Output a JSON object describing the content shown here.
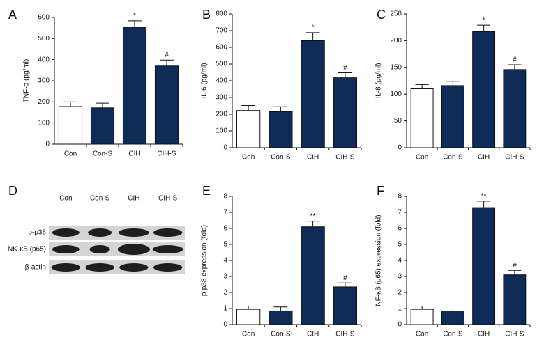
{
  "chart_data": [
    {
      "type": "bar",
      "panel": "A",
      "ylabel": "TNF-α (pg/ml)",
      "categories": [
        "Con",
        "Con-S",
        "CIH",
        "CIH-S"
      ],
      "values": [
        178,
        172,
        552,
        370
      ],
      "errors": [
        22,
        22,
        32,
        28
      ],
      "annotations": [
        null,
        null,
        "*",
        "#"
      ],
      "colors": [
        "#ffffff",
        "#0f2b57",
        "#0f2b57",
        "#0f2b57"
      ],
      "ylim": [
        0,
        600
      ],
      "yticks": [
        0,
        100,
        200,
        300,
        400,
        500,
        600
      ]
    },
    {
      "type": "bar",
      "panel": "B",
      "ylabel": "IL-6 (pg/ml)",
      "categories": [
        "Con",
        "Con-S",
        "CIH",
        "CIH-S"
      ],
      "values": [
        222,
        215,
        640,
        418
      ],
      "errors": [
        30,
        30,
        48,
        30
      ],
      "annotations": [
        null,
        null,
        "*",
        "#"
      ],
      "colors": [
        "#ffffff",
        "#0f2b57",
        "#0f2b57",
        "#0f2b57"
      ],
      "ylim": [
        0,
        800
      ],
      "yticks": [
        0,
        100,
        200,
        300,
        400,
        500,
        600,
        700,
        800
      ]
    },
    {
      "type": "bar",
      "panel": "C",
      "ylabel": "IL-8 (pg/ml)",
      "categories": [
        "Con",
        "Con-S",
        "CIH",
        "CIH-S"
      ],
      "values": [
        110,
        116,
        217,
        146
      ],
      "errors": [
        8,
        8,
        12,
        9
      ],
      "annotations": [
        null,
        null,
        "*",
        "#"
      ],
      "colors": [
        "#ffffff",
        "#0f2b57",
        "#0f2b57",
        "#0f2b57"
      ],
      "ylim": [
        0,
        250
      ],
      "yticks": [
        0,
        50,
        100,
        150,
        200,
        250
      ]
    },
    {
      "type": "blot",
      "panel": "D",
      "categories": [
        "Con",
        "Con-S",
        "CIH",
        "CIH-S"
      ],
      "rows": [
        "p-p38",
        "NK-κB (p65)",
        "β-actin"
      ]
    },
    {
      "type": "bar",
      "panel": "E",
      "ylabel": "p-p38 expression (fold)",
      "categories": [
        "Con",
        "Con-S",
        "CIH",
        "CIH-S"
      ],
      "values": [
        0.95,
        0.85,
        6.1,
        2.35
      ],
      "errors": [
        0.2,
        0.25,
        0.35,
        0.25
      ],
      "annotations": [
        null,
        null,
        "**",
        "#"
      ],
      "colors": [
        "#ffffff",
        "#0f2b57",
        "#0f2b57",
        "#0f2b57"
      ],
      "ylim": [
        0,
        8
      ],
      "yticks": [
        0,
        1,
        2,
        3,
        4,
        5,
        6,
        7,
        8
      ]
    },
    {
      "type": "bar",
      "panel": "F",
      "ylabel": "NF-κB (p65) expression (fold)",
      "categories": [
        "Con",
        "Con-S",
        "CIH",
        "CIH-S"
      ],
      "values": [
        0.95,
        0.8,
        7.3,
        3.1
      ],
      "errors": [
        0.2,
        0.18,
        0.4,
        0.28
      ],
      "annotations": [
        null,
        null,
        "**",
        "#"
      ],
      "colors": [
        "#ffffff",
        "#0f2b57",
        "#0f2b57",
        "#0f2b57"
      ],
      "ylim": [
        0,
        8
      ],
      "yticks": [
        0,
        1,
        2,
        3,
        4,
        5,
        6,
        7,
        8
      ]
    }
  ]
}
